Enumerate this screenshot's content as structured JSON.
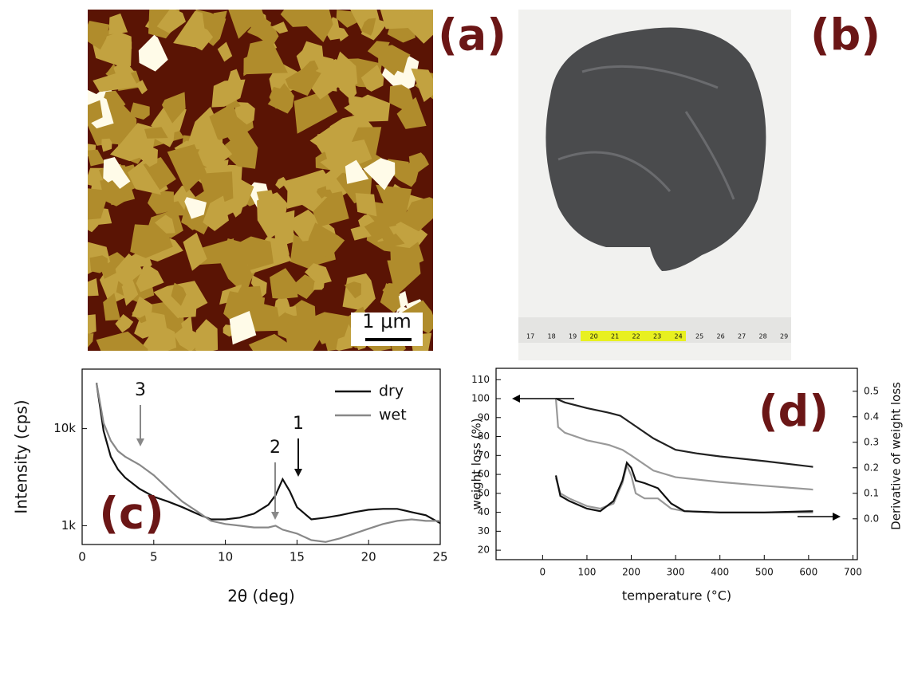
{
  "panels": {
    "a": {
      "label": "(a)",
      "scale_bar": "1 μm"
    },
    "b": {
      "label": "(b)",
      "ruler_labels": [
        "17",
        "18",
        "19",
        "20",
        "21",
        "22",
        "23",
        "24",
        "25",
        "26",
        "27",
        "28",
        "29"
      ]
    }
  },
  "chart_data": [
    {
      "type": "line",
      "panel_label": "(c)",
      "x_label": "2θ (deg)",
      "y_label": "Intensity (cps)",
      "log_y": true,
      "xlim": [
        0,
        25
      ],
      "xticks": [
        0,
        5,
        10,
        15,
        20,
        25
      ],
      "ylim": [
        640,
        41000
      ],
      "yticks": [
        {
          "value": 1000,
          "label": "1k"
        },
        {
          "value": 10000,
          "label": "10k"
        }
      ],
      "annotations": [
        "1",
        "2",
        "3"
      ],
      "series": [
        {
          "name": "dry",
          "color": "#111111",
          "x": [
            1,
            1.5,
            2,
            2.5,
            3,
            4,
            5,
            6,
            7,
            8,
            9,
            10,
            11,
            12,
            13,
            13.5,
            14,
            14.5,
            15,
            16,
            17,
            18,
            19,
            20,
            21,
            22,
            23,
            24,
            25
          ],
          "values": [
            29600,
            9450,
            5140,
            3790,
            3130,
            2400,
            1990,
            1770,
            1550,
            1330,
            1160,
            1160,
            1210,
            1330,
            1640,
            2060,
            3010,
            2260,
            1550,
            1160,
            1210,
            1280,
            1380,
            1460,
            1490,
            1490,
            1380,
            1280,
            1060
          ]
        },
        {
          "name": "wet",
          "color": "#888888",
          "x": [
            1,
            1.5,
            2,
            2.5,
            3,
            4,
            5,
            6,
            7,
            8,
            9,
            10,
            11,
            12,
            13,
            13.5,
            14,
            15,
            16,
            17,
            18,
            19,
            20,
            21,
            22,
            23,
            24,
            25
          ],
          "values": [
            29600,
            11400,
            7510,
            5870,
            5140,
            4250,
            3310,
            2400,
            1770,
            1410,
            1120,
            1040,
            1000,
            960,
            960,
            1000,
            910,
            830,
            710,
            680,
            740,
            830,
            930,
            1040,
            1120,
            1160,
            1120,
            1120
          ]
        }
      ]
    },
    {
      "type": "line",
      "panel_label": "(d)",
      "x_label": "temperature (°C)",
      "y_label": "weight loss (%)",
      "y2_label": "Derivative of weight loss",
      "xlim": [
        -105,
        710
      ],
      "xticks": [
        0,
        100,
        200,
        300,
        400,
        500,
        600,
        700
      ],
      "ylim": [
        15,
        116
      ],
      "yticks": [
        20,
        30,
        40,
        50,
        60,
        70,
        80,
        90,
        100,
        110
      ],
      "y2lim": [
        -0.16,
        0.59
      ],
      "y2ticks": [
        {
          "value": 0,
          "label": "0.0"
        },
        0.1,
        0.2,
        0.3,
        0.4,
        0.5
      ],
      "series": [
        {
          "color": "#222222",
          "x": [
            30,
            50,
            100,
            150,
            175,
            200,
            250,
            300,
            350,
            400,
            500,
            610
          ],
          "values": [
            100,
            98,
            95,
            92.5,
            91,
            87,
            79,
            73,
            71,
            69.5,
            67,
            64
          ]
        },
        {
          "color": "#999999",
          "x": [
            30,
            35,
            50,
            100,
            150,
            180,
            200,
            250,
            300,
            400,
            500,
            610
          ],
          "values": [
            100,
            85,
            82,
            78,
            75.5,
            73,
            70,
            62,
            58.5,
            56,
            54,
            52
          ]
        },
        {
          "color": "#999999",
          "axis": "y2",
          "x": [
            30,
            40,
            60,
            100,
            130,
            160,
            180,
            190,
            200,
            210,
            230,
            260,
            290,
            320,
            400,
            500,
            610
          ],
          "values": [
            0.16,
            0.1,
            0.08,
            0.05,
            0.04,
            0.06,
            0.14,
            0.21,
            0.17,
            0.1,
            0.08,
            0.08,
            0.04,
            0.03,
            0.025,
            0.025,
            0.025
          ]
        },
        {
          "color": "#111111",
          "axis": "y2",
          "x": [
            30,
            40,
            60,
            100,
            130,
            160,
            180,
            190,
            200,
            210,
            230,
            260,
            290,
            320,
            400,
            500,
            610
          ],
          "values": [
            0.17,
            0.09,
            0.07,
            0.04,
            0.03,
            0.07,
            0.15,
            0.22,
            0.2,
            0.15,
            0.14,
            0.12,
            0.06,
            0.03,
            0.025,
            0.025,
            0.03
          ]
        }
      ]
    }
  ]
}
